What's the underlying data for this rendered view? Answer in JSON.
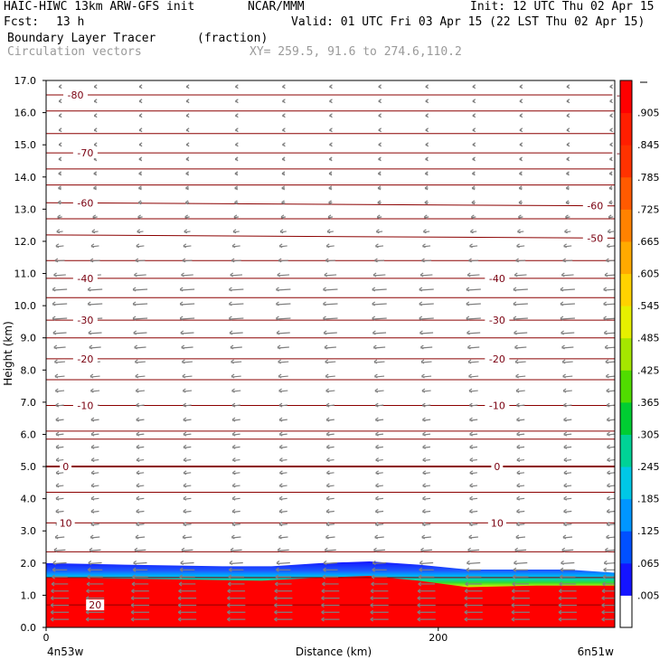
{
  "header": {
    "model": "HAIC-HIWC 13km ARW-GFS init",
    "org": "NCAR/MMM",
    "init": "Init: 12 UTC Thu 02 Apr 15",
    "fcst_label": "Fcst:",
    "fcst_value": "13 h",
    "valid": "Valid: 01 UTC Fri 03 Apr 15 (22 LST Thu 02 Apr 15)",
    "field": "Boundary Layer Tracer",
    "units": "(fraction)",
    "vectors": "Circulation vectors",
    "xy": "XY= 259.5, 91.6 to 274.6,110.2"
  },
  "chart_data": {
    "type": "heatmap",
    "xlabel": "Distance (km)",
    "ylabel": "Height (km)",
    "xlim": [
      0,
      290
    ],
    "ylim": [
      0,
      17
    ],
    "x_ticks": [
      "0",
      "200"
    ],
    "y_ticks": [
      "0.0",
      "1.0",
      "2.0",
      "3.0",
      "4.0",
      "5.0",
      "6.0",
      "7.0",
      "8.0",
      "9.0",
      "10.0",
      "11.0",
      "12.0",
      "13.0",
      "14.0",
      "15.0",
      "16.0",
      "17.0"
    ],
    "left_endpoint": "4n53w",
    "right_endpoint": "6n51w",
    "colorbar": {
      "labels": [
        ".005",
        ".065",
        ".125",
        ".185",
        ".245",
        ".305",
        ".365",
        ".425",
        ".485",
        ".545",
        ".605",
        ".665",
        ".725",
        ".785",
        ".845",
        ".905"
      ],
      "colors": [
        "#ffffff",
        "#1414ff",
        "#0050ff",
        "#0096ff",
        "#00c8e6",
        "#00d296",
        "#00cd32",
        "#50dc00",
        "#a5e600",
        "#e6f000",
        "#ffd200",
        "#ffaa00",
        "#ff8200",
        "#ff5a00",
        "#ff3200",
        "#ff1e00",
        "#ff0000"
      ]
    },
    "tracer_top_km": [
      [
        0,
        2.0
      ],
      [
        40,
        1.95
      ],
      [
        90,
        1.9
      ],
      [
        115,
        1.9
      ],
      [
        140,
        2.0
      ],
      [
        165,
        2.05
      ],
      [
        190,
        1.95
      ],
      [
        215,
        1.8
      ],
      [
        240,
        1.8
      ],
      [
        265,
        1.8
      ],
      [
        290,
        1.7
      ]
    ],
    "tracer_core_top_km": [
      [
        0,
        1.55
      ],
      [
        60,
        1.5
      ],
      [
        110,
        1.45
      ],
      [
        140,
        1.55
      ],
      [
        165,
        1.6
      ],
      [
        190,
        1.45
      ],
      [
        215,
        1.25
      ],
      [
        250,
        1.3
      ],
      [
        290,
        1.3
      ]
    ],
    "temperature_contours": [
      {
        "label": "-80",
        "height_km": 16.55,
        "slope": 0.0,
        "label_x": [
          15,
          295
        ]
      },
      {
        "label": "-70",
        "height_km": 14.75,
        "slope": 0.0,
        "label_x": [
          20,
          295
        ]
      },
      {
        "label": "-60",
        "height_km": 13.2,
        "slope": -0.1,
        "label_x": [
          20,
          280
        ]
      },
      {
        "label": "-50",
        "height_km": 12.2,
        "slope": -0.1,
        "label_x": [
          280
        ]
      },
      {
        "label": "-40",
        "height_km": 10.85,
        "slope": 0.0,
        "label_x": [
          20,
          230
        ]
      },
      {
        "label": "-30",
        "height_km": 9.55,
        "slope": 0.0,
        "label_x": [
          20,
          230
        ]
      },
      {
        "label": "-20",
        "height_km": 8.35,
        "slope": 0.0,
        "label_x": [
          20,
          230
        ]
      },
      {
        "label": "-10",
        "height_km": 6.9,
        "slope": 0.0,
        "label_x": [
          20,
          230
        ]
      },
      {
        "label": "0",
        "height_km": 5.0,
        "slope": 0.0,
        "label_x": [
          10,
          230
        ]
      },
      {
        "label": "10",
        "height_km": 3.25,
        "slope": 0.0,
        "label_x": [
          10,
          230
        ]
      },
      {
        "label": "20",
        "height_km": 0.7,
        "slope": 0.0,
        "label_x": [
          25
        ]
      }
    ],
    "unlabeled_contours_km": [
      16.05,
      15.35,
      14.25,
      13.75,
      12.7,
      11.4,
      10.25,
      9.0,
      7.7,
      6.1,
      5.85,
      4.2,
      2.35,
      1.55
    ],
    "wind_vectors": {
      "columns_km": [
        7,
        25,
        48,
        72,
        97,
        121,
        145,
        170,
        194,
        218,
        242,
        266,
        288
      ],
      "direction": "westward",
      "strength_by_height_km": [
        [
          0.3,
          1.0
        ],
        [
          1.0,
          1.0
        ],
        [
          1.8,
          0.8
        ],
        [
          3.0,
          0.45
        ],
        [
          5.0,
          0.4
        ],
        [
          7.0,
          0.45
        ],
        [
          8.5,
          0.6
        ],
        [
          9.5,
          0.8
        ],
        [
          10.5,
          0.8
        ],
        [
          11.5,
          0.5
        ],
        [
          13.0,
          0.2
        ],
        [
          15.0,
          0.1
        ],
        [
          16.5,
          0.05
        ]
      ]
    }
  }
}
